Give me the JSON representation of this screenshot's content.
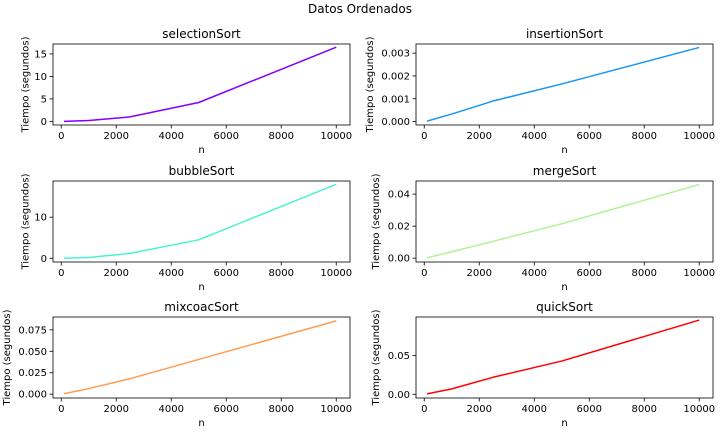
{
  "figure": {
    "suptitle": "Datos Ordenados"
  },
  "chart_data": [
    {
      "type": "line",
      "title": "selectionSort",
      "xlabel": "n",
      "ylabel": "Tiempo (segundos)",
      "xlim": [
        -300,
        10500
      ],
      "ylim": [
        -0.8,
        17.2
      ],
      "xticks": [
        0,
        2000,
        4000,
        6000,
        8000,
        10000
      ],
      "xtick_labels": [
        "0",
        "2000",
        "4000",
        "6000",
        "8000",
        "10000"
      ],
      "yticks": [
        0,
        5,
        10,
        15
      ],
      "ytick_labels": [
        "0",
        "5",
        "10",
        "15"
      ],
      "color": "#8000ff",
      "series": [
        {
          "x": [
            100,
            1000,
            2500,
            5000,
            10000
          ],
          "values": [
            0.0,
            0.2,
            1.0,
            4.2,
            16.5
          ]
        }
      ]
    },
    {
      "type": "line",
      "title": "insertionSort",
      "xlabel": "n",
      "ylabel": "Tiempo (segundos)",
      "xlim": [
        -300,
        10500
      ],
      "ylim": [
        -0.00015,
        0.0034
      ],
      "xticks": [
        0,
        2000,
        4000,
        6000,
        8000,
        10000
      ],
      "xtick_labels": [
        "0",
        "2000",
        "4000",
        "6000",
        "8000",
        "10000"
      ],
      "yticks": [
        0.0,
        0.001,
        0.002,
        0.003
      ],
      "ytick_labels": [
        "0.000",
        "0.001",
        "0.002",
        "0.003"
      ],
      "color": "#1996f3",
      "series": [
        {
          "x": [
            100,
            1000,
            2500,
            5000,
            10000
          ],
          "values": [
            2e-05,
            0.00033,
            0.0009,
            0.00165,
            0.00325
          ]
        }
      ]
    },
    {
      "type": "line",
      "title": "bubbleSort",
      "xlabel": "n",
      "ylabel": "Tiempo (segundos)",
      "xlim": [
        -300,
        10500
      ],
      "ylim": [
        -0.9,
        18.8
      ],
      "xticks": [
        0,
        2000,
        4000,
        6000,
        8000,
        10000
      ],
      "xtick_labels": [
        "0",
        "2000",
        "4000",
        "6000",
        "8000",
        "10000"
      ],
      "yticks": [
        0,
        10
      ],
      "ytick_labels": [
        "0",
        "10"
      ],
      "color": "#4df3ce",
      "series": [
        {
          "x": [
            100,
            1000,
            2500,
            5000,
            10000
          ],
          "values": [
            0.0,
            0.2,
            1.2,
            4.5,
            18.0
          ]
        }
      ]
    },
    {
      "type": "line",
      "title": "mergeSort",
      "xlabel": "n",
      "ylabel": "Tiempo (segundos)",
      "xlim": [
        -300,
        10500
      ],
      "ylim": [
        -0.0024,
        0.0482
      ],
      "xticks": [
        0,
        2000,
        4000,
        6000,
        8000,
        10000
      ],
      "xtick_labels": [
        "0",
        "2000",
        "4000",
        "6000",
        "8000",
        "10000"
      ],
      "yticks": [
        0.0,
        0.02,
        0.04
      ],
      "ytick_labels": [
        "0.00",
        "0.02",
        "0.04"
      ],
      "color": "#b2f396",
      "series": [
        {
          "x": [
            100,
            1000,
            2500,
            5000,
            10000
          ],
          "values": [
            0.0002,
            0.004,
            0.0105,
            0.0215,
            0.046
          ]
        }
      ]
    },
    {
      "type": "line",
      "title": "mixcoacSort",
      "xlabel": "n",
      "ylabel": "Tiempo (segundos)",
      "xlim": [
        -300,
        10500
      ],
      "ylim": [
        -0.0045,
        0.09
      ],
      "xticks": [
        0,
        2000,
        4000,
        6000,
        8000,
        10000
      ],
      "xtick_labels": [
        "0",
        "2000",
        "4000",
        "6000",
        "8000",
        "10000"
      ],
      "yticks": [
        0.0,
        0.025,
        0.05,
        0.075
      ],
      "ytick_labels": [
        "0.000",
        "0.025",
        "0.050",
        "0.075"
      ],
      "color": "#ff9d52",
      "series": [
        {
          "x": [
            100,
            1000,
            2500,
            5000,
            10000
          ],
          "values": [
            0.0005,
            0.0065,
            0.018,
            0.0405,
            0.0855
          ]
        }
      ]
    },
    {
      "type": "line",
      "title": "quickSort",
      "xlabel": "n",
      "ylabel": "Tiempo (segundos)",
      "xlim": [
        -300,
        10500
      ],
      "ylim": [
        -0.0048,
        0.1
      ],
      "xticks": [
        0,
        2000,
        4000,
        6000,
        8000,
        10000
      ],
      "xtick_labels": [
        "0",
        "2000",
        "4000",
        "6000",
        "8000",
        "10000"
      ],
      "yticks": [
        0.0,
        0.05
      ],
      "ytick_labels": [
        "0.00",
        "0.05"
      ],
      "color": "#ff0000",
      "series": [
        {
          "x": [
            100,
            1000,
            2500,
            5000,
            10000
          ],
          "values": [
            0.0005,
            0.007,
            0.022,
            0.043,
            0.096
          ]
        }
      ]
    }
  ]
}
